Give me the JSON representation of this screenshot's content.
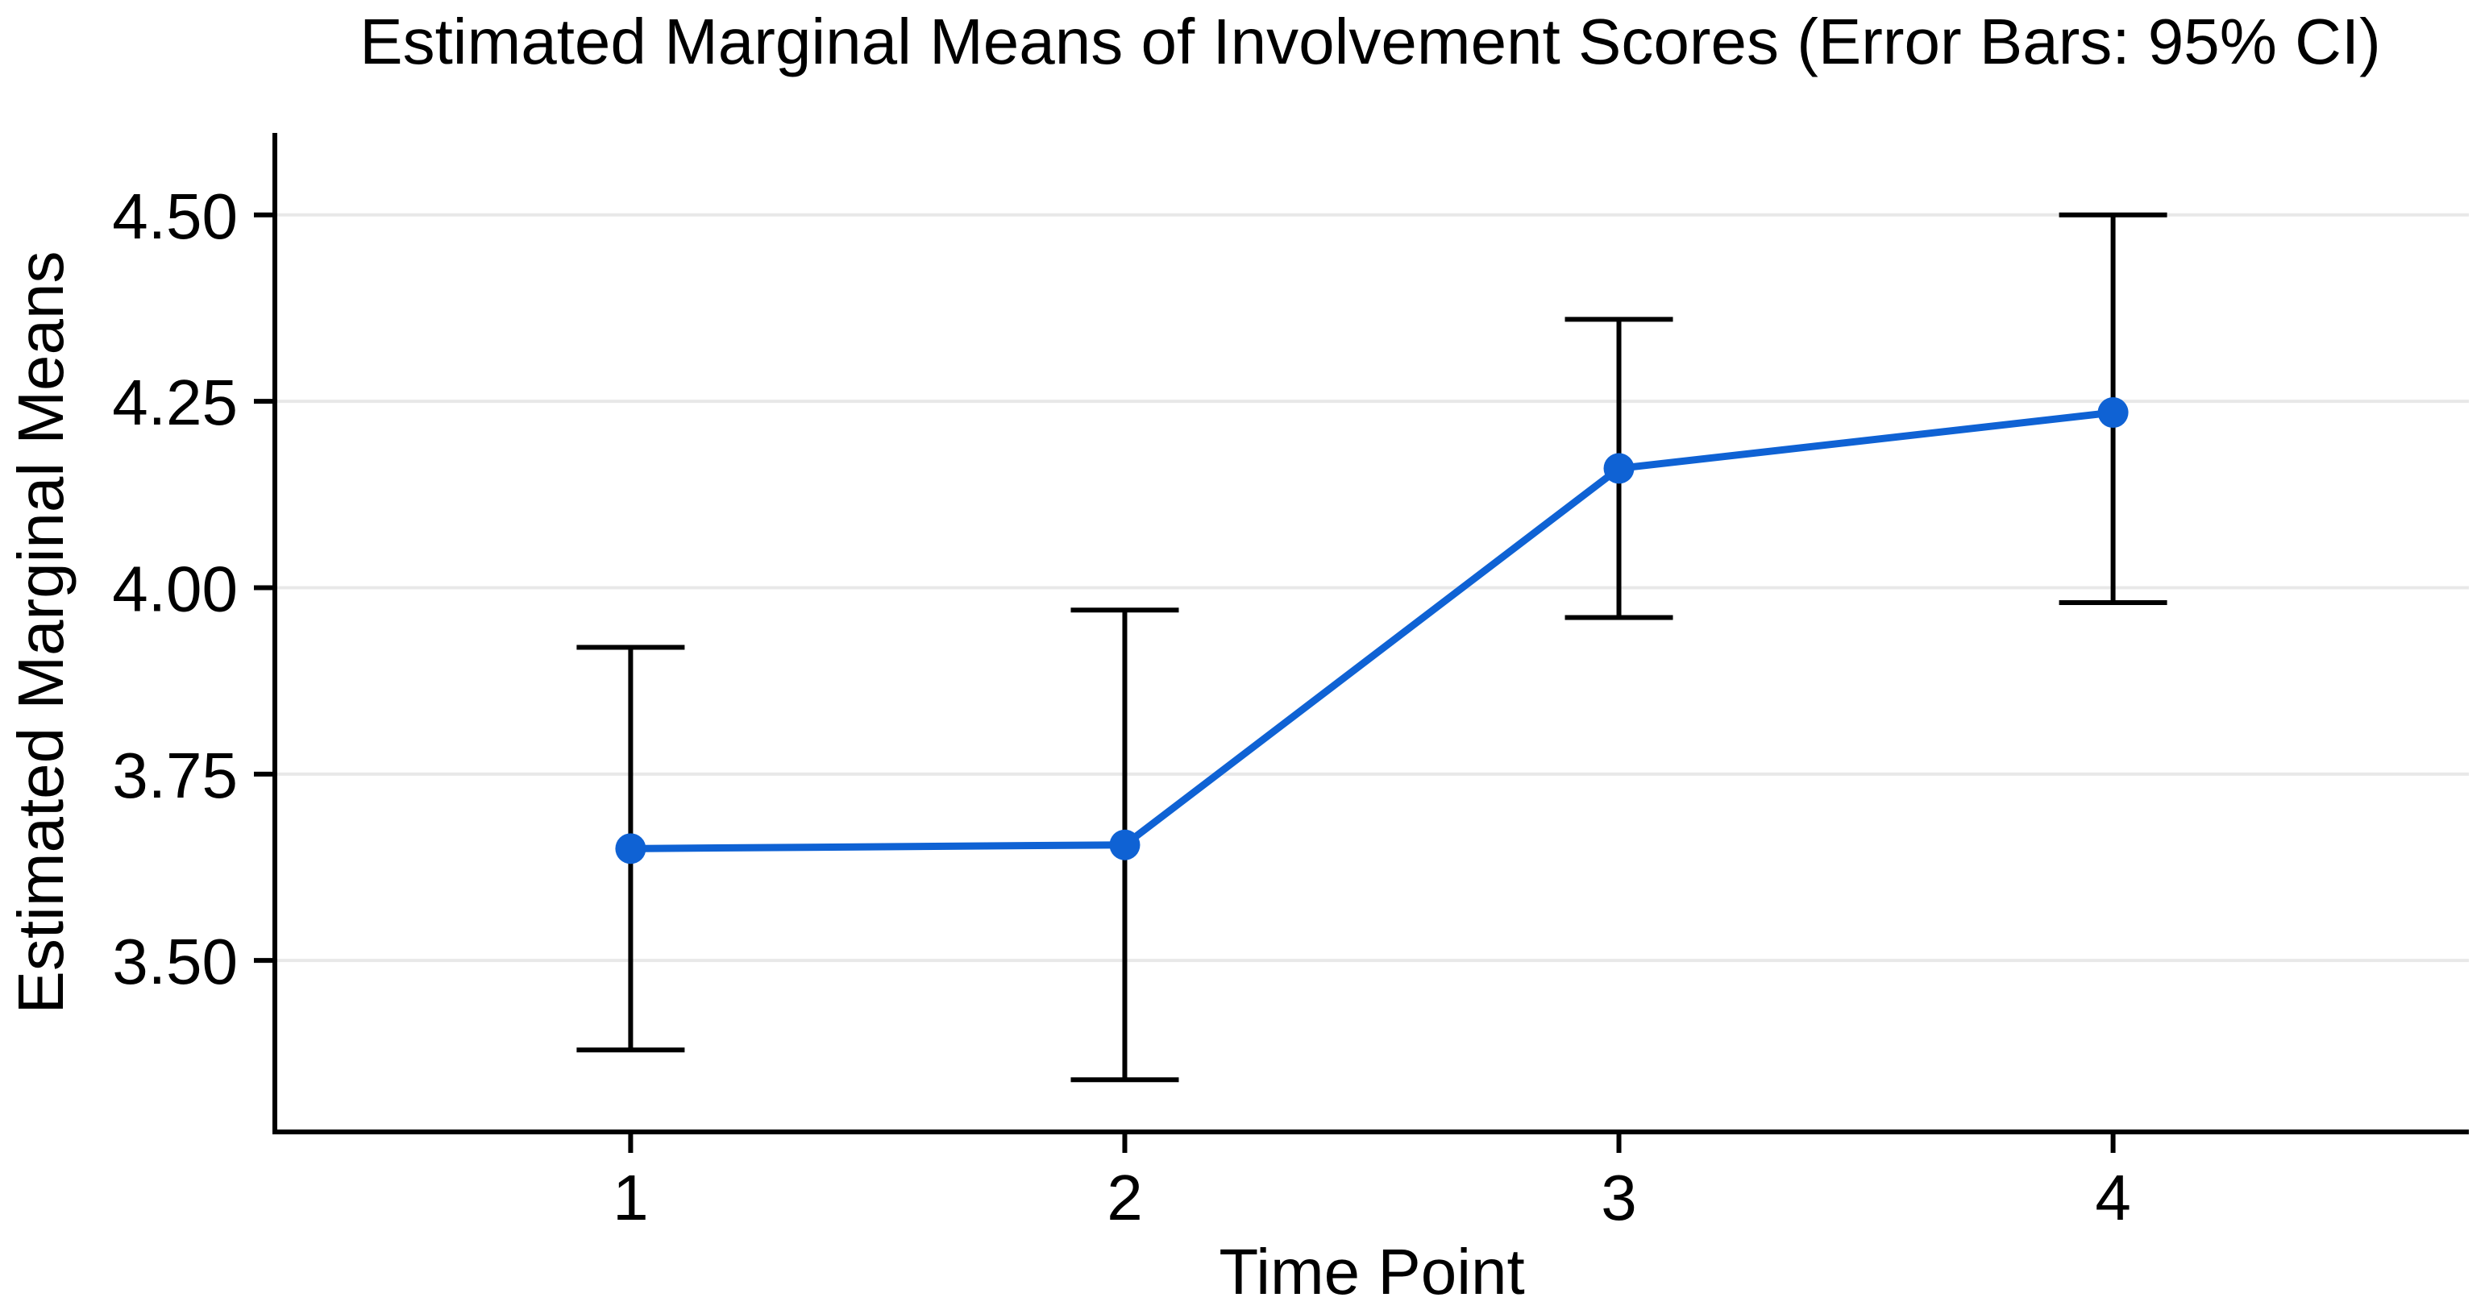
{
  "chart_data": {
    "type": "line",
    "title": "Estimated Marginal Means of Involvement Scores (Error Bars: 95% CI)",
    "xlabel": "Time Point",
    "ylabel": "Estimated Marginal Means",
    "categories": [
      1,
      2,
      3,
      4
    ],
    "x_tick_labels": [
      "1",
      "2",
      "3",
      "4"
    ],
    "series": [
      {
        "name": "Estimated Marginal Means of Involvement Scores",
        "values": [
          3.65,
          3.655,
          4.16,
          4.235
        ],
        "ci_low": [
          3.38,
          3.34,
          3.96,
          3.98
        ],
        "ci_high": [
          3.92,
          3.97,
          4.36,
          4.5
        ]
      }
    ],
    "error_bar_type": "95% CI",
    "y_ticks": [
      3.5,
      3.75,
      4.0,
      4.25,
      4.5
    ],
    "y_tick_labels": [
      "3.50",
      "3.75",
      "4.00",
      "4.25",
      "4.50"
    ],
    "xlim": [
      0.28,
      4.72
    ],
    "ylim": [
      3.27,
      4.61
    ],
    "grid": "horizontal-only",
    "legend_position": "none",
    "colors": {
      "series": "#0f62d4",
      "error_bar": "#000000",
      "gridline": "#e8e8e8",
      "axis": "#000000",
      "text": "#000000",
      "background": "#ffffff"
    }
  }
}
